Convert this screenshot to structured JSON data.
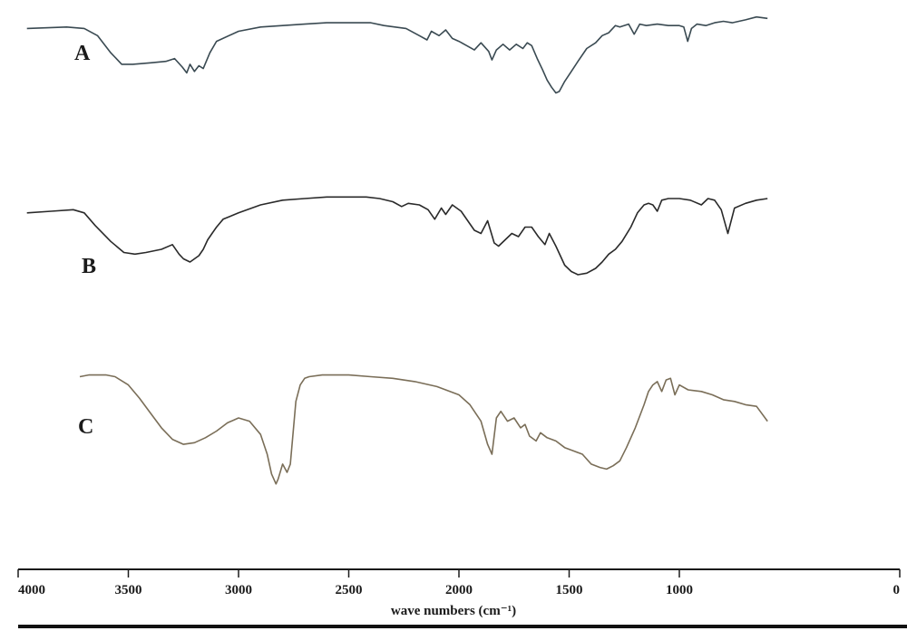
{
  "chart_data": {
    "type": "line",
    "title": "",
    "xlabel": "wave numbers (cm⁻¹)",
    "ylabel": "",
    "xlim": [
      4000,
      0
    ],
    "x_reversed": true,
    "x_ticks": [
      4000,
      3500,
      3000,
      2500,
      2000,
      1500,
      1000,
      0
    ],
    "x_tick_labels": [
      "4000",
      "3500",
      "3000",
      "2500",
      "2000",
      "1500",
      "1000",
      "0"
    ],
    "ylim": [
      0,
      100
    ],
    "grid": false,
    "legend": "none",
    "series": [
      {
        "name": "A",
        "color": "#3a4a52",
        "x": [
          3960,
          3780,
          3700,
          3640,
          3580,
          3530,
          3480,
          3400,
          3330,
          3290,
          3255,
          3235,
          3220,
          3200,
          3180,
          3160,
          3130,
          3100,
          3000,
          2900,
          2800,
          2700,
          2600,
          2500,
          2400,
          2340,
          2290,
          2240,
          2180,
          2145,
          2125,
          2090,
          2060,
          2030,
          2000,
          1965,
          1930,
          1900,
          1865,
          1850,
          1830,
          1800,
          1770,
          1740,
          1710,
          1690,
          1670,
          1645,
          1620,
          1600,
          1580,
          1560,
          1545,
          1520,
          1490,
          1460,
          1420,
          1380,
          1350,
          1320,
          1290,
          1270,
          1230,
          1205,
          1180,
          1150,
          1100,
          1050,
          1000,
          980,
          962,
          945,
          920,
          880,
          840,
          800,
          760,
          700,
          650,
          600
        ],
        "y": [
          89,
          90,
          89,
          84,
          72,
          64,
          64,
          65,
          66,
          68,
          62,
          58,
          64,
          59,
          63,
          61,
          72,
          80,
          87,
          90,
          91,
          92,
          93,
          93,
          93,
          91,
          90,
          89,
          84,
          81,
          87,
          84,
          88,
          82,
          80,
          77,
          74,
          79,
          73,
          67,
          74,
          78,
          74,
          78,
          75,
          79,
          77,
          68,
          60,
          53,
          48,
          44,
          45,
          52,
          59,
          66,
          75,
          79,
          84,
          86,
          91,
          90,
          92,
          85,
          92,
          91,
          92,
          91,
          91,
          90,
          80,
          89,
          92,
          91,
          93,
          94,
          93,
          95,
          97,
          96
        ]
      },
      {
        "name": "B",
        "color": "#2a2a2a",
        "x": [
          3960,
          3850,
          3750,
          3700,
          3650,
          3580,
          3520,
          3470,
          3420,
          3350,
          3300,
          3270,
          3250,
          3220,
          3200,
          3180,
          3160,
          3140,
          3120,
          3100,
          3070,
          3000,
          2900,
          2800,
          2700,
          2600,
          2500,
          2420,
          2360,
          2300,
          2260,
          2230,
          2180,
          2140,
          2110,
          2080,
          2060,
          2030,
          1990,
          1960,
          1930,
          1900,
          1870,
          1840,
          1820,
          1790,
          1760,
          1730,
          1700,
          1670,
          1640,
          1610,
          1590,
          1560,
          1520,
          1490,
          1460,
          1420,
          1380,
          1350,
          1320,
          1290,
          1260,
          1220,
          1190,
          1160,
          1140,
          1120,
          1100,
          1080,
          1050,
          1000,
          950,
          900,
          870,
          840,
          810,
          780,
          750,
          700,
          650,
          600
        ],
        "y": [
          83,
          84,
          85,
          83,
          75,
          65,
          58,
          57,
          58,
          60,
          63,
          57,
          54,
          52,
          54,
          56,
          60,
          66,
          70,
          74,
          79,
          83,
          88,
          91,
          92,
          93,
          93,
          93,
          92,
          90,
          87,
          89,
          88,
          85,
          79,
          86,
          82,
          88,
          84,
          78,
          72,
          70,
          78,
          64,
          62,
          66,
          70,
          68,
          74,
          74,
          68,
          63,
          70,
          62,
          50,
          46,
          44,
          45,
          48,
          52,
          57,
          60,
          65,
          74,
          83,
          88,
          89,
          88,
          84,
          91,
          92,
          92,
          91,
          88,
          92,
          91,
          85,
          70,
          86,
          89,
          91,
          92
        ]
      },
      {
        "name": "C",
        "color": "#7a6e58",
        "x": [
          3720,
          3680,
          3600,
          3560,
          3500,
          3450,
          3400,
          3350,
          3300,
          3250,
          3200,
          3150,
          3100,
          3050,
          3000,
          2950,
          2900,
          2870,
          2850,
          2830,
          2820,
          2800,
          2780,
          2765,
          2740,
          2720,
          2700,
          2680,
          2620,
          2550,
          2500,
          2400,
          2300,
          2200,
          2100,
          2000,
          1950,
          1900,
          1870,
          1850,
          1830,
          1810,
          1780,
          1750,
          1720,
          1700,
          1680,
          1650,
          1630,
          1600,
          1560,
          1520,
          1480,
          1440,
          1400,
          1360,
          1330,
          1300,
          1270,
          1240,
          1200,
          1160,
          1140,
          1120,
          1100,
          1080,
          1060,
          1040,
          1020,
          1000,
          960,
          900,
          850,
          800,
          750,
          700,
          650,
          600
        ],
        "y": [
          97,
          98,
          98,
          97,
          92,
          84,
          75,
          66,
          59,
          56,
          57,
          60,
          64,
          69,
          72,
          70,
          62,
          50,
          38,
          32,
          35,
          44,
          39,
          44,
          82,
          92,
          96,
          97,
          98,
          98,
          98,
          97,
          96,
          94,
          91,
          86,
          80,
          70,
          56,
          50,
          72,
          76,
          70,
          72,
          66,
          68,
          61,
          58,
          63,
          60,
          58,
          54,
          52,
          50,
          44,
          42,
          41,
          43,
          46,
          54,
          66,
          80,
          88,
          92,
          94,
          88,
          95,
          96,
          86,
          92,
          89,
          88,
          86,
          83,
          82,
          80,
          79,
          70
        ]
      }
    ]
  }
}
